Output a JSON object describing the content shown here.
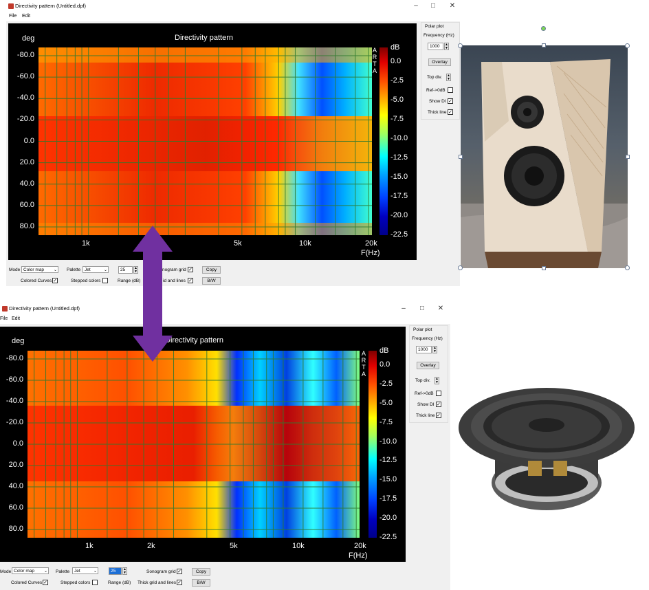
{
  "window1": {
    "title": "Directivity pattern (Untitled.dpf)",
    "menu": [
      "File",
      "Edit"
    ]
  },
  "window2": {
    "title": "Directivity pattern (Untitled.dpf)",
    "menu": [
      "File",
      "Edit"
    ]
  },
  "plot": {
    "title": "Directivity pattern",
    "y_unit": "deg",
    "x_unit": "F(Hz)",
    "cbar_unit": "dB",
    "brand_letters": [
      "A",
      "R",
      "T",
      "A"
    ],
    "y_ticks": [
      "-80.0",
      "-60.0",
      "-40.0",
      "-20.0",
      "0.0",
      "20.0",
      "40.0",
      "60.0",
      "80.0"
    ],
    "x_ticks": [
      "1k",
      "2k",
      "5k",
      "10k",
      "20k"
    ],
    "x_ticks_top": [
      "1k",
      "5k",
      "10k",
      "20k"
    ],
    "cbar_ticks": [
      "0.0",
      "-2.5",
      "-5.0",
      "-7.5",
      "-10.0",
      "-12.5",
      "-15.0",
      "-17.5",
      "-20.0",
      "-22.5"
    ]
  },
  "side_panel": {
    "polar_plot": "Polar plot",
    "frequency_label": "Frequency (Hz)",
    "frequency_value": "1000",
    "overlay": "Overlay",
    "top_div": "Top div.",
    "ref_0db": "Ref->0dB",
    "show_di": "Show DI",
    "thick_line": "Thick line",
    "ref_0db_checked": false,
    "show_di_checked": true,
    "thick_line_checked": true
  },
  "bottom_controls": {
    "mode_label": "Mode",
    "mode_value": "Color map",
    "palette_label": "Palette",
    "palette_value": "Jet",
    "range_value": "25",
    "sonogram_grid": "Sonogram grid",
    "sonogram_grid_top": "nogram grid",
    "copy": "Copy",
    "colored_curves": "Colored Curves",
    "stepped_colors": "Stepped colors",
    "range_label": "Range (dB)",
    "thick_grid": "Thick grid and  lines",
    "thick_grid_top": "id and  lines",
    "bw": "B/W"
  },
  "colors": {
    "arrow": "#7030a0",
    "plot_bg": "#000000",
    "grid": "#2f7a2f"
  },
  "icons": [
    "minimize-icon",
    "maximize-icon",
    "close-icon",
    "double-arrow-icon",
    "rotate-handle-icon"
  ]
}
